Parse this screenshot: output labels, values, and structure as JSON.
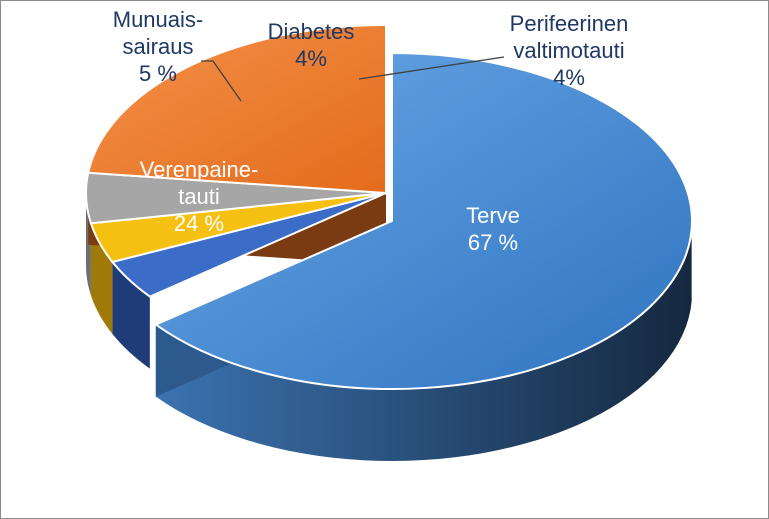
{
  "chart_data": {
    "type": "pie",
    "title": "",
    "legend": "none",
    "slices": [
      {
        "label_lines": [
          "Terve"
        ],
        "value_label": "67 %",
        "value": 67,
        "color": "#4a8fd8",
        "side_color": "#1e3a5c",
        "text_color": "#ffffff"
      },
      {
        "label_lines": [
          "Perifeerinen",
          "valtimotauti"
        ],
        "value_label": "4%",
        "value": 4,
        "color": "#3a6cc8",
        "side_color": "#1f3c78",
        "text_color": "#1f3864"
      },
      {
        "label_lines": [
          "Diabetes"
        ],
        "value_label": "4%",
        "value": 4,
        "color": "#f6c013",
        "side_color": "#a07a08",
        "text_color": "#1f3864"
      },
      {
        "label_lines": [
          "Munuais-",
          "sairaus"
        ],
        "value_label": "5 %",
        "value": 5,
        "color": "#a6a6a6",
        "side_color": "#6e6e6e",
        "text_color": "#1f3864"
      },
      {
        "label_lines": [
          "Verenpaine-",
          "tauti"
        ],
        "value_label": "24 %",
        "value": 24,
        "color": "#ee7d2e",
        "side_color": "#8f4516",
        "text_color": "#ffffff"
      }
    ]
  }
}
